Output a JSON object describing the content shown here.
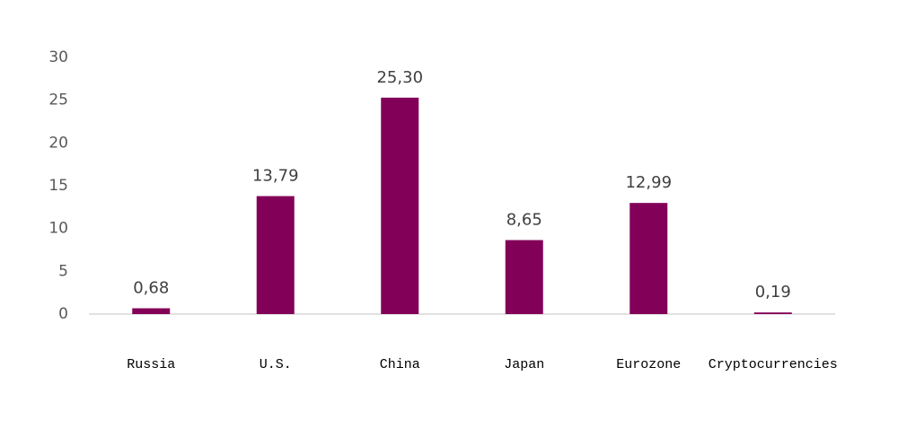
{
  "chart_data": {
    "type": "bar",
    "categories": [
      "Russia",
      "U.S.",
      "China",
      "Japan",
      "Eurozone",
      "Cryptocurrencies"
    ],
    "values": [
      0.68,
      13.79,
      25.3,
      8.65,
      12.99,
      0.19
    ],
    "value_labels": [
      "0,68",
      "13,79",
      "25,30",
      "8,65",
      "12,99",
      "0,19"
    ],
    "color": "#830058",
    "ylim": [
      0,
      30
    ],
    "yticks": [
      0,
      5,
      10,
      15,
      20,
      25,
      30
    ],
    "grid": false
  }
}
